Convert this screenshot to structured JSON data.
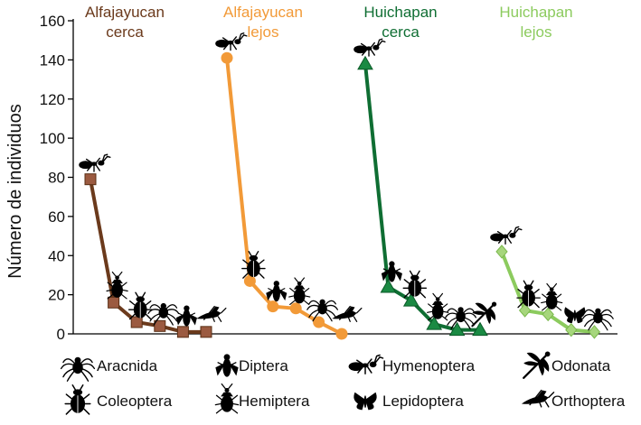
{
  "chart_data": {
    "type": "line",
    "title": "",
    "xlabel": "",
    "ylabel": "Número de individuos",
    "ylim": [
      0,
      160
    ],
    "yticks": [
      0,
      20,
      40,
      60,
      80,
      100,
      120,
      140,
      160
    ],
    "grid": false,
    "series": [
      {
        "name": "Alfajayucan cerca",
        "title_lines": [
          "Alfajayucan",
          "cerca"
        ],
        "color": "#6b3a1c",
        "marker_color": "#9b5a40",
        "marker": "square",
        "values": [
          79,
          16,
          6,
          4,
          1,
          1
        ],
        "taxa": [
          "Hymenoptera",
          "Hemiptera",
          "Coleoptera",
          "Aracnida",
          "Diptera",
          "Orthoptera"
        ]
      },
      {
        "name": "Alfajayucan lejos",
        "title_lines": [
          "Alfajayucan",
          "lejos"
        ],
        "color": "#f29a38",
        "marker_color": "#f29a38",
        "marker": "circle",
        "values": [
          141,
          27,
          14,
          13,
          6,
          0
        ],
        "taxa": [
          "Hymenoptera",
          "Coleoptera",
          "Diptera",
          "Hemiptera",
          "Aracnida",
          "Orthoptera"
        ]
      },
      {
        "name": "Huichapan cerca",
        "title_lines": [
          "Huichapan",
          "cerca"
        ],
        "color": "#0f6e33",
        "marker_color": "#1a8a43",
        "marker": "triangle",
        "values": [
          138,
          24,
          17,
          5,
          2,
          2
        ],
        "taxa": [
          "Hymenoptera",
          "Diptera",
          "Coleoptera",
          "Hemiptera",
          "Aracnida",
          "Odonata"
        ]
      },
      {
        "name": "Huichapan lejos",
        "title_lines": [
          "Huichapan",
          "lejos"
        ],
        "color": "#8ccb5e",
        "marker_color": "#a6d67c",
        "marker": "diamond",
        "values": [
          42,
          12,
          10,
          2,
          1
        ],
        "taxa": [
          "Hymenoptera",
          "Coleoptera",
          "Hemiptera",
          "Lepidoptera",
          "Aracnida"
        ]
      }
    ],
    "legend": [
      {
        "label": "Aracnida",
        "icon": "spider-icon"
      },
      {
        "label": "Diptera",
        "icon": "fly-icon"
      },
      {
        "label": "Hymenoptera",
        "icon": "ant-icon"
      },
      {
        "label": "Odonata",
        "icon": "dragonfly-icon"
      },
      {
        "label": "Coleoptera",
        "icon": "beetle-icon"
      },
      {
        "label": "Hemiptera",
        "icon": "bug-icon"
      },
      {
        "label": "Lepidoptera",
        "icon": "butterfly-icon"
      },
      {
        "label": "Orthoptera",
        "icon": "grasshopper-icon"
      }
    ]
  }
}
